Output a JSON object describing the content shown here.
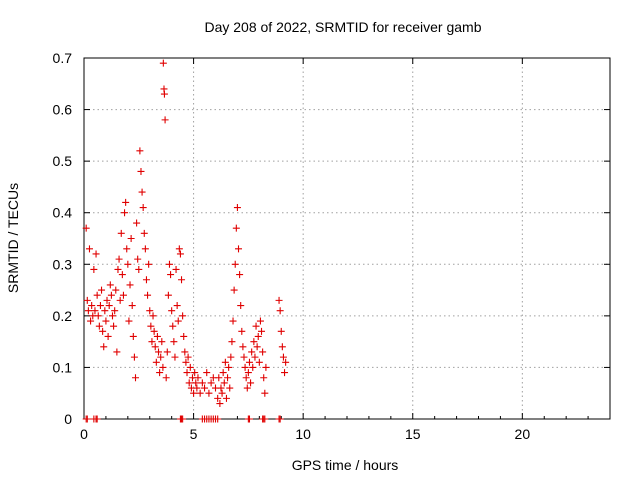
{
  "chart_data": {
    "type": "scatter",
    "title": "Day 208 of 2022, SRMTID for receiver gamb",
    "xlabel": "GPS time / hours",
    "ylabel": "SRMTID / TECUs",
    "xlim": [
      0,
      24
    ],
    "ylim": [
      0,
      0.7
    ],
    "grid": true,
    "marker": "plus",
    "series": [
      {
        "name": "SRMTID",
        "color": "#e00000",
        "points": [
          [
            0.1,
            0.37
          ],
          [
            0.15,
            0.23
          ],
          [
            0.2,
            0.21
          ],
          [
            0.25,
            0.33
          ],
          [
            0.3,
            0.19
          ],
          [
            0.35,
            0.22
          ],
          [
            0.4,
            0.2
          ],
          [
            0.45,
            0.29
          ],
          [
            0.5,
            0.21
          ],
          [
            0.55,
            0.32
          ],
          [
            0.6,
            0.24
          ],
          [
            0.65,
            0.2
          ],
          [
            0.7,
            0.18
          ],
          [
            0.75,
            0.22
          ],
          [
            0.8,
            0.25
          ],
          [
            0.85,
            0.17
          ],
          [
            0.9,
            0.14
          ],
          [
            0.95,
            0.21
          ],
          [
            1.0,
            0.19
          ],
          [
            1.05,
            0.23
          ],
          [
            1.1,
            0.16
          ],
          [
            1.15,
            0.22
          ],
          [
            1.2,
            0.26
          ],
          [
            1.25,
            0.24
          ],
          [
            1.3,
            0.2
          ],
          [
            1.35,
            0.18
          ],
          [
            1.4,
            0.21
          ],
          [
            1.45,
            0.25
          ],
          [
            1.5,
            0.13
          ],
          [
            1.55,
            0.29
          ],
          [
            1.6,
            0.31
          ],
          [
            1.65,
            0.23
          ],
          [
            1.7,
            0.36
          ],
          [
            1.75,
            0.28
          ],
          [
            1.8,
            0.24
          ],
          [
            1.85,
            0.4
          ],
          [
            1.9,
            0.42
          ],
          [
            1.95,
            0.33
          ],
          [
            2.0,
            0.3
          ],
          [
            2.05,
            0.19
          ],
          [
            2.1,
            0.26
          ],
          [
            2.15,
            0.35
          ],
          [
            2.2,
            0.22
          ],
          [
            2.25,
            0.16
          ],
          [
            2.3,
            0.12
          ],
          [
            2.35,
            0.08
          ],
          [
            2.4,
            0.38
          ],
          [
            2.45,
            0.31
          ],
          [
            2.5,
            0.29
          ],
          [
            2.55,
            0.52
          ],
          [
            2.6,
            0.48
          ],
          [
            2.65,
            0.44
          ],
          [
            2.7,
            0.41
          ],
          [
            2.75,
            0.36
          ],
          [
            2.8,
            0.33
          ],
          [
            2.85,
            0.27
          ],
          [
            2.9,
            0.24
          ],
          [
            2.95,
            0.3
          ],
          [
            3.0,
            0.21
          ],
          [
            3.05,
            0.18
          ],
          [
            3.1,
            0.15
          ],
          [
            3.15,
            0.2
          ],
          [
            3.2,
            0.17
          ],
          [
            3.25,
            0.14
          ],
          [
            3.3,
            0.11
          ],
          [
            3.35,
            0.16
          ],
          [
            3.4,
            0.13
          ],
          [
            3.45,
            0.09
          ],
          [
            3.5,
            0.12
          ],
          [
            3.55,
            0.15
          ],
          [
            3.6,
            0.1
          ],
          [
            3.62,
            0.69
          ],
          [
            3.65,
            0.64
          ],
          [
            3.67,
            0.63
          ],
          [
            3.7,
            0.58
          ],
          [
            3.75,
            0.08
          ],
          [
            3.8,
            0.13
          ],
          [
            3.85,
            0.24
          ],
          [
            3.9,
            0.3
          ],
          [
            3.95,
            0.28
          ],
          [
            4.0,
            0.21
          ],
          [
            4.05,
            0.18
          ],
          [
            4.1,
            0.15
          ],
          [
            4.15,
            0.12
          ],
          [
            4.2,
            0.29
          ],
          [
            4.25,
            0.22
          ],
          [
            4.3,
            0.19
          ],
          [
            4.35,
            0.33
          ],
          [
            4.4,
            0.32
          ],
          [
            4.45,
            0.27
          ],
          [
            4.5,
            0.2
          ],
          [
            4.55,
            0.16
          ],
          [
            4.6,
            0.13
          ],
          [
            4.65,
            0.11
          ],
          [
            4.7,
            0.09
          ],
          [
            4.75,
            0.12
          ],
          [
            4.8,
            0.07
          ],
          [
            4.85,
            0.1
          ],
          [
            4.9,
            0.06
          ],
          [
            4.95,
            0.08
          ],
          [
            5.0,
            0.05
          ],
          [
            5.05,
            0.09
          ],
          [
            5.1,
            0.07
          ],
          [
            5.15,
            0.06
          ],
          [
            5.2,
            0.08
          ],
          [
            5.3,
            0.05
          ],
          [
            5.4,
            0.07
          ],
          [
            5.5,
            0.06
          ],
          [
            5.6,
            0.09
          ],
          [
            5.7,
            0.05
          ],
          [
            5.8,
            0.07
          ],
          [
            5.9,
            0.08
          ],
          [
            6.0,
            0.06
          ],
          [
            6.1,
            0.04
          ],
          [
            6.15,
            0.08
          ],
          [
            6.2,
            0.03
          ],
          [
            6.25,
            0.06
          ],
          [
            6.3,
            0.05
          ],
          [
            6.35,
            0.09
          ],
          [
            6.4,
            0.07
          ],
          [
            6.45,
            0.11
          ],
          [
            6.5,
            0.04
          ],
          [
            6.55,
            0.08
          ],
          [
            6.6,
            0.1
          ],
          [
            6.65,
            0.06
          ],
          [
            6.7,
            0.12
          ],
          [
            6.75,
            0.15
          ],
          [
            6.8,
            0.19
          ],
          [
            6.85,
            0.25
          ],
          [
            6.9,
            0.3
          ],
          [
            6.95,
            0.37
          ],
          [
            7.0,
            0.41
          ],
          [
            7.05,
            0.33
          ],
          [
            7.1,
            0.28
          ],
          [
            7.15,
            0.22
          ],
          [
            7.2,
            0.17
          ],
          [
            7.25,
            0.14
          ],
          [
            7.3,
            0.12
          ],
          [
            7.35,
            0.1
          ],
          [
            7.4,
            0.08
          ],
          [
            7.45,
            0.06
          ],
          [
            7.5,
            0.09
          ],
          [
            7.55,
            0.11
          ],
          [
            7.6,
            0.07
          ],
          [
            7.65,
            0.13
          ],
          [
            7.7,
            0.1
          ],
          [
            7.75,
            0.15
          ],
          [
            7.8,
            0.12
          ],
          [
            7.85,
            0.18
          ],
          [
            7.9,
            0.14
          ],
          [
            7.95,
            0.16
          ],
          [
            8.0,
            0.11
          ],
          [
            8.05,
            0.19
          ],
          [
            8.1,
            0.17
          ],
          [
            8.15,
            0.13
          ],
          [
            8.2,
            0.08
          ],
          [
            8.25,
            0.05
          ],
          [
            8.3,
            0.1
          ],
          [
            8.9,
            0.23
          ],
          [
            8.95,
            0.21
          ],
          [
            9.0,
            0.17
          ],
          [
            9.05,
            0.14
          ],
          [
            9.1,
            0.12
          ],
          [
            9.15,
            0.09
          ],
          [
            9.2,
            0.11
          ],
          [
            0.1,
            0.0
          ],
          [
            0.15,
            0.0
          ],
          [
            0.45,
            0.0
          ],
          [
            0.55,
            0.0
          ],
          [
            0.6,
            0.0
          ],
          [
            4.4,
            0.0
          ],
          [
            4.45,
            0.0
          ],
          [
            4.5,
            0.0
          ],
          [
            5.4,
            0.0
          ],
          [
            5.5,
            0.0
          ],
          [
            5.6,
            0.0
          ],
          [
            5.7,
            0.0
          ],
          [
            5.8,
            0.0
          ],
          [
            5.9,
            0.0
          ],
          [
            6.0,
            0.0
          ],
          [
            6.1,
            0.0
          ],
          [
            7.5,
            0.0
          ],
          [
            7.55,
            0.0
          ],
          [
            8.15,
            0.0
          ],
          [
            8.2,
            0.0
          ],
          [
            8.25,
            0.0
          ],
          [
            8.9,
            0.0
          ],
          [
            8.95,
            0.0
          ]
        ]
      }
    ],
    "x_ticks": [
      0,
      5,
      10,
      15,
      20
    ],
    "x_tick_labels": [
      "0",
      "5",
      "10",
      "15",
      "20"
    ],
    "y_ticks": [
      0,
      0.1,
      0.2,
      0.3,
      0.4,
      0.5,
      0.6,
      0.7
    ],
    "y_tick_labels": [
      "0",
      "0.1",
      "0.2",
      "0.3",
      "0.4",
      "0.5",
      "0.6",
      "0.7"
    ]
  }
}
